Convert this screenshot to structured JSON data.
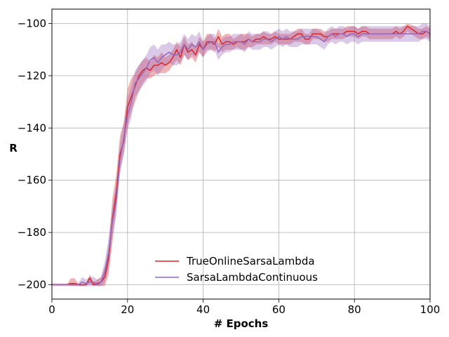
{
  "chart_data": {
    "type": "line",
    "title": "",
    "xlabel": "# Epochs",
    "ylabel": "R",
    "xlim": [
      0,
      100
    ],
    "ylim": [
      -205.5,
      -94.5
    ],
    "xticks": [
      0,
      20,
      40,
      60,
      80,
      100
    ],
    "yticks": [
      -200,
      -180,
      -160,
      -140,
      -120,
      -100
    ],
    "grid": true,
    "legend_position": "lower-center",
    "series": [
      {
        "name": "TrueOnlineSarsaLambda",
        "color": "#d62728",
        "x": [
          0,
          1,
          2,
          3,
          4,
          5,
          6,
          7,
          8,
          9,
          10,
          11,
          12,
          13,
          14,
          15,
          16,
          17,
          18,
          19,
          20,
          21,
          22,
          23,
          24,
          25,
          26,
          27,
          28,
          29,
          30,
          31,
          32,
          33,
          34,
          35,
          36,
          37,
          38,
          39,
          40,
          41,
          42,
          43,
          44,
          45,
          46,
          47,
          48,
          49,
          50,
          51,
          52,
          53,
          54,
          55,
          56,
          57,
          58,
          59,
          60,
          61,
          62,
          63,
          64,
          65,
          66,
          67,
          68,
          69,
          70,
          71,
          72,
          73,
          74,
          75,
          76,
          77,
          78,
          79,
          80,
          81,
          82,
          83,
          84,
          85,
          86,
          87,
          88,
          89,
          90,
          91,
          92,
          93,
          94,
          95,
          96,
          97,
          98,
          99,
          100
        ],
        "y": [
          -200,
          -200,
          -200,
          -200,
          -200,
          -199.5,
          -199.5,
          -200,
          -200,
          -200,
          -197.5,
          -200,
          -199.5,
          -199,
          -197,
          -190,
          -175,
          -165,
          -150,
          -145,
          -132,
          -128,
          -124,
          -120,
          -118,
          -117,
          -118,
          -116,
          -116,
          -115,
          -116,
          -115,
          -113,
          -110,
          -113,
          -108,
          -111,
          -110,
          -112,
          -108,
          -110,
          -107,
          -107,
          -108,
          -105,
          -108,
          -107,
          -107,
          -108,
          -107,
          -107,
          -107,
          -106,
          -107,
          -106,
          -106,
          -105,
          -106,
          -106,
          -105,
          -106,
          -106,
          -106,
          -106,
          -105,
          -104,
          -104,
          -106,
          -106,
          -104,
          -104,
          -104,
          -105,
          -105,
          -104,
          -104,
          -104,
          -104,
          -103,
          -103,
          -103,
          -104,
          -103,
          -103,
          -104,
          -104,
          -104,
          -104,
          -104,
          -104,
          -104,
          -103,
          -104,
          -103,
          -101,
          -102,
          -103,
          -104,
          -104,
          -103,
          -104
        ],
        "band_low": [
          -200,
          -200,
          -200,
          -200,
          -200,
          -200.5,
          -200.5,
          -200.5,
          -200.5,
          -200.5,
          -199.5,
          -200.5,
          -200.5,
          -200.5,
          -200.5,
          -196,
          -184,
          -171,
          -156,
          -150,
          -139,
          -134,
          -130,
          -126,
          -123,
          -121,
          -121,
          -120,
          -119,
          -119,
          -119,
          -118,
          -116,
          -114,
          -116,
          -112,
          -114,
          -113,
          -115,
          -111,
          -113,
          -110,
          -110,
          -111,
          -109,
          -111,
          -110,
          -110,
          -110,
          -109,
          -110,
          -110,
          -109,
          -109,
          -108,
          -108,
          -108,
          -108,
          -108,
          -107,
          -108,
          -108,
          -108,
          -108,
          -107,
          -107,
          -107,
          -108,
          -108,
          -106,
          -106,
          -106,
          -107,
          -107,
          -106,
          -106,
          -106,
          -106,
          -105,
          -105,
          -105,
          -106,
          -105,
          -105,
          -106,
          -106,
          -106,
          -106,
          -106,
          -106,
          -106,
          -105,
          -106,
          -105,
          -103,
          -104,
          -105,
          -106,
          -106,
          -105,
          -106
        ],
        "band_high": [
          -199.8,
          -199.8,
          -199.8,
          -199.8,
          -199.8,
          -197.5,
          -197.5,
          -199.5,
          -199.8,
          -199.8,
          -196,
          -199,
          -198,
          -197,
          -193,
          -185,
          -167,
          -158,
          -143,
          -138,
          -125,
          -121,
          -119,
          -116,
          -114,
          -113,
          -115,
          -112,
          -113,
          -111,
          -113,
          -112,
          -110,
          -107,
          -109,
          -105,
          -108,
          -107,
          -109,
          -105,
          -107,
          -104,
          -104,
          -106,
          -102,
          -105,
          -104,
          -104,
          -106,
          -105,
          -104,
          -104,
          -104,
          -105,
          -104,
          -104,
          -103,
          -104,
          -104,
          -103,
          -104,
          -104,
          -104,
          -104,
          -103,
          -102,
          -102,
          -104,
          -104,
          -102,
          -102,
          -102,
          -103,
          -103,
          -102,
          -102,
          -102,
          -102,
          -101,
          -101,
          -101,
          -102,
          -101,
          -101,
          -102,
          -102,
          -102,
          -102,
          -102,
          -102,
          -102,
          -101,
          -102,
          -101,
          -100,
          -100.5,
          -101,
          -102,
          -102,
          -101,
          -102
        ]
      },
      {
        "name": "SarsaLambdaContinuous",
        "color": "#9467bd",
        "x": [
          0,
          1,
          2,
          3,
          4,
          5,
          6,
          7,
          8,
          9,
          10,
          11,
          12,
          13,
          14,
          15,
          16,
          17,
          18,
          19,
          20,
          21,
          22,
          23,
          24,
          25,
          26,
          27,
          28,
          29,
          30,
          31,
          32,
          33,
          34,
          35,
          36,
          37,
          38,
          39,
          40,
          41,
          42,
          43,
          44,
          45,
          46,
          47,
          48,
          49,
          50,
          51,
          52,
          53,
          54,
          55,
          56,
          57,
          58,
          59,
          60,
          61,
          62,
          63,
          64,
          65,
          66,
          67,
          68,
          69,
          70,
          71,
          72,
          73,
          74,
          75,
          76,
          77,
          78,
          79,
          80,
          81,
          82,
          83,
          84,
          85,
          86,
          87,
          88,
          89,
          90,
          91,
          92,
          93,
          94,
          95,
          96,
          97,
          98,
          99,
          100
        ],
        "y": [
          -200,
          -200,
          -200,
          -200,
          -200,
          -200,
          -200,
          -200,
          -199,
          -199.5,
          -199,
          -199,
          -200,
          -199,
          -195,
          -188,
          -176,
          -168,
          -152,
          -144,
          -135,
          -130,
          -123,
          -121,
          -119,
          -117,
          -114,
          -113,
          -115,
          -113,
          -112,
          -111,
          -112,
          -112,
          -111,
          -108,
          -110,
          -108,
          -109,
          -107,
          -110,
          -108,
          -107,
          -107,
          -111,
          -109,
          -108,
          -108,
          -107,
          -107,
          -107,
          -108,
          -106,
          -107,
          -107,
          -107,
          -106,
          -106,
          -107,
          -106,
          -105,
          -106,
          -105,
          -106,
          -106,
          -106,
          -105,
          -105,
          -105,
          -105,
          -105,
          -106,
          -107,
          -105,
          -104,
          -105,
          -104,
          -104,
          -105,
          -104,
          -104,
          -105,
          -104,
          -104,
          -104,
          -104,
          -104,
          -104,
          -104,
          -104,
          -104,
          -104,
          -104,
          -104,
          -104,
          -104,
          -104,
          -104,
          -103,
          -103,
          -104
        ],
        "band_low": [
          -200.5,
          -200.5,
          -200.5,
          -200.5,
          -200.5,
          -200.5,
          -200.5,
          -200.5,
          -200.5,
          -200.5,
          -200.5,
          -200.5,
          -200.5,
          -200.5,
          -199,
          -194,
          -182,
          -174,
          -158,
          -150,
          -141,
          -136,
          -128,
          -126,
          -124,
          -122,
          -119,
          -118,
          -120,
          -118,
          -116,
          -115,
          -116,
          -116,
          -115,
          -112,
          -114,
          -112,
          -113,
          -111,
          -113,
          -111,
          -110,
          -110,
          -114,
          -112,
          -111,
          -111,
          -110,
          -110,
          -110,
          -111,
          -109,
          -110,
          -110,
          -110,
          -109,
          -109,
          -110,
          -109,
          -108,
          -109,
          -108,
          -109,
          -109,
          -109,
          -108,
          -108,
          -108,
          -108,
          -108,
          -109,
          -110,
          -108,
          -107,
          -108,
          -107,
          -107,
          -108,
          -107,
          -107,
          -108,
          -107,
          -107,
          -107,
          -107,
          -107,
          -107,
          -107,
          -107,
          -107,
          -107,
          -107,
          -107,
          -107,
          -107,
          -107,
          -107,
          -106,
          -106,
          -107
        ],
        "band_high": [
          -199.5,
          -199.5,
          -199.5,
          -199.5,
          -199.5,
          -199.5,
          -199.5,
          -199.5,
          -197,
          -198,
          -197,
          -197,
          -198,
          -197,
          -191,
          -182,
          -170,
          -162,
          -146,
          -138,
          -129,
          -124,
          -118,
          -116,
          -114,
          -112,
          -109,
          -108,
          -110,
          -108,
          -108,
          -107,
          -108,
          -108,
          -107,
          -104,
          -106,
          -104,
          -105,
          -103,
          -107,
          -105,
          -104,
          -104,
          -108,
          -106,
          -105,
          -105,
          -104,
          -104,
          -104,
          -105,
          -103,
          -104,
          -104,
          -104,
          -103,
          -103,
          -104,
          -103,
          -102,
          -103,
          -102,
          -103,
          -103,
          -103,
          -102,
          -102,
          -102,
          -102,
          -102,
          -103,
          -104,
          -102,
          -101,
          -102,
          -101,
          -101,
          -102,
          -101,
          -101,
          -102,
          -101,
          -101,
          -101,
          -101,
          -101,
          -101,
          -101,
          -101,
          -101,
          -101,
          -101,
          -101,
          -101,
          -101,
          -101,
          -101,
          -100,
          -100,
          -101
        ]
      }
    ]
  }
}
